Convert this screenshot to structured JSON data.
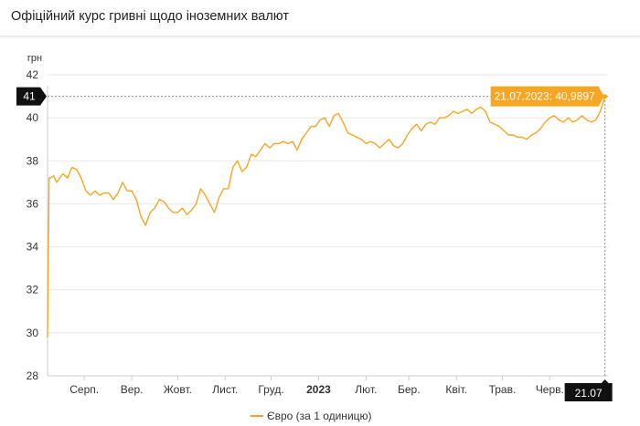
{
  "header": {
    "title": "Офіційний курс гривні щодо іноземних валют"
  },
  "chart_data": {
    "type": "line",
    "title": "Офіційний курс гривні щодо іноземних валют",
    "ylabel": "грн",
    "xlabel": "",
    "ylim": [
      28,
      42
    ],
    "y_ticks": [
      28,
      30,
      32,
      34,
      36,
      38,
      40,
      42
    ],
    "y_tick_labels": [
      "28",
      "30",
      "32",
      "34",
      "36",
      "38",
      "40",
      "42"
    ],
    "x_range": [
      "2022-07-22",
      "2023-07-23"
    ],
    "x_ticks": [
      {
        "label": "Серп.",
        "date": "2022-08-15",
        "bold": false
      },
      {
        "label": "Вер.",
        "date": "2022-09-15",
        "bold": false
      },
      {
        "label": "Жовт.",
        "date": "2022-10-15",
        "bold": false
      },
      {
        "label": "Лист.",
        "date": "2022-11-15",
        "bold": false
      },
      {
        "label": "Груд.",
        "date": "2022-12-15",
        "bold": false
      },
      {
        "label": "2023",
        "date": "2023-01-15",
        "bold": true
      },
      {
        "label": "Лют.",
        "date": "2023-02-15",
        "bold": false
      },
      {
        "label": "Бер.",
        "date": "2023-03-15",
        "bold": false
      },
      {
        "label": "Квіт.",
        "date": "2023-04-15",
        "bold": false
      },
      {
        "label": "Трав.",
        "date": "2023-05-15",
        "bold": false
      },
      {
        "label": "Черв.",
        "date": "2023-06-15",
        "bold": false
      }
    ],
    "grid": true,
    "legend_placement": "bottom-center",
    "series": [
      {
        "name": "Євро (за 1 одиницю)",
        "color": "#f5a623",
        "x": [
          "2022-07-22",
          "2022-07-23",
          "2022-07-24",
          "2022-07-26",
          "2022-07-28",
          "2022-07-30",
          "2022-08-01",
          "2022-08-04",
          "2022-08-07",
          "2022-08-10",
          "2022-08-13",
          "2022-08-16",
          "2022-08-19",
          "2022-08-22",
          "2022-08-25",
          "2022-08-28",
          "2022-08-31",
          "2022-09-03",
          "2022-09-06",
          "2022-09-09",
          "2022-09-12",
          "2022-09-15",
          "2022-09-18",
          "2022-09-21",
          "2022-09-24",
          "2022-09-27",
          "2022-09-30",
          "2022-10-03",
          "2022-10-06",
          "2022-10-09",
          "2022-10-12",
          "2022-10-15",
          "2022-10-18",
          "2022-10-21",
          "2022-10-24",
          "2022-10-27",
          "2022-10-30",
          "2022-11-02",
          "2022-11-05",
          "2022-11-08",
          "2022-11-11",
          "2022-11-14",
          "2022-11-17",
          "2022-11-20",
          "2022-11-23",
          "2022-11-26",
          "2022-11-29",
          "2022-12-02",
          "2022-12-05",
          "2022-12-08",
          "2022-12-11",
          "2022-12-14",
          "2022-12-17",
          "2022-12-20",
          "2022-12-23",
          "2022-12-26",
          "2022-12-29",
          "2023-01-01",
          "2023-01-04",
          "2023-01-07",
          "2023-01-10",
          "2023-01-13",
          "2023-01-16",
          "2023-01-19",
          "2023-01-22",
          "2023-01-25",
          "2023-01-28",
          "2023-01-31",
          "2023-02-03",
          "2023-02-06",
          "2023-02-09",
          "2023-02-12",
          "2023-02-15",
          "2023-02-18",
          "2023-02-21",
          "2023-02-24",
          "2023-02-27",
          "2023-03-02",
          "2023-03-05",
          "2023-03-08",
          "2023-03-11",
          "2023-03-14",
          "2023-03-17",
          "2023-03-20",
          "2023-03-23",
          "2023-03-26",
          "2023-03-29",
          "2023-04-01",
          "2023-04-04",
          "2023-04-07",
          "2023-04-10",
          "2023-04-13",
          "2023-04-16",
          "2023-04-19",
          "2023-04-22",
          "2023-04-25",
          "2023-04-28",
          "2023-05-01",
          "2023-05-04",
          "2023-05-07",
          "2023-05-10",
          "2023-05-13",
          "2023-05-16",
          "2023-05-19",
          "2023-05-22",
          "2023-05-25",
          "2023-05-28",
          "2023-05-31",
          "2023-06-03",
          "2023-06-06",
          "2023-06-09",
          "2023-06-12",
          "2023-06-15",
          "2023-06-18",
          "2023-06-21",
          "2023-06-24",
          "2023-06-27",
          "2023-06-30",
          "2023-07-03",
          "2023-07-06",
          "2023-07-09",
          "2023-07-12",
          "2023-07-15",
          "2023-07-18",
          "2023-07-21"
        ],
        "values": [
          29.8,
          37.2,
          37.2,
          37.3,
          37.0,
          37.2,
          37.4,
          37.2,
          37.7,
          37.6,
          37.2,
          36.6,
          36.4,
          36.6,
          36.4,
          36.5,
          36.5,
          36.2,
          36.5,
          37.0,
          36.6,
          36.6,
          36.2,
          35.4,
          35.0,
          35.6,
          35.8,
          36.2,
          36.1,
          35.8,
          35.6,
          35.6,
          35.8,
          35.5,
          35.7,
          36.0,
          36.7,
          36.4,
          36.0,
          35.6,
          36.3,
          36.7,
          36.7,
          37.7,
          38.0,
          37.5,
          37.7,
          38.3,
          38.2,
          38.5,
          38.8,
          38.6,
          38.8,
          38.8,
          38.9,
          38.8,
          38.9,
          38.5,
          39.0,
          39.3,
          39.6,
          39.6,
          39.9,
          40.0,
          39.6,
          40.1,
          40.2,
          39.8,
          39.3,
          39.2,
          39.1,
          39.0,
          38.8,
          38.9,
          38.8,
          38.6,
          38.8,
          39.0,
          38.7,
          38.6,
          38.8,
          39.2,
          39.5,
          39.7,
          39.4,
          39.7,
          39.8,
          39.7,
          40.0,
          40.0,
          40.1,
          40.3,
          40.2,
          40.3,
          40.4,
          40.2,
          40.4,
          40.5,
          40.3,
          39.8,
          39.7,
          39.6,
          39.4,
          39.2,
          39.2,
          39.1,
          39.1,
          39.0,
          39.2,
          39.3,
          39.5,
          39.8,
          40.0,
          40.1,
          39.9,
          39.8,
          40.0,
          39.8,
          39.9,
          40.1,
          39.9,
          39.8,
          39.9,
          40.3,
          40.9897
        ]
      }
    ],
    "reference_line": {
      "value": 41,
      "label": "41"
    },
    "tooltip": {
      "text": "21.07.2023: 40,9897",
      "date": "2023-07-21",
      "value": 40.9897
    },
    "x_cursor_label": "21.07"
  }
}
